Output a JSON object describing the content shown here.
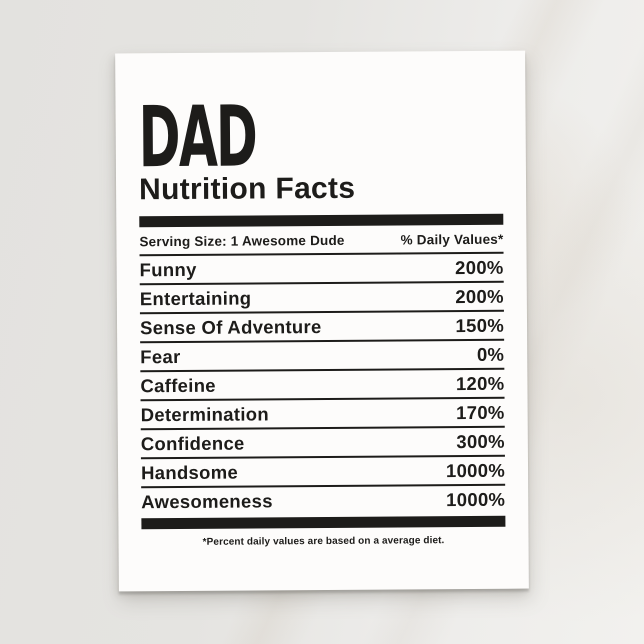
{
  "card": {
    "title": "DAD",
    "subtitle": "Nutrition Facts",
    "serving_label": "Serving Size: 1 Awesome Dude",
    "daily_values_label": "% Daily Values*",
    "rows": [
      {
        "label": "Funny",
        "value": "200%"
      },
      {
        "label": "Entertaining",
        "value": "200%"
      },
      {
        "label": "Sense Of Adventure",
        "value": "150%"
      },
      {
        "label": "Fear",
        "value": "0%"
      },
      {
        "label": "Caffeine",
        "value": "120%"
      },
      {
        "label": "Determination",
        "value": "170%"
      },
      {
        "label": "Confidence",
        "value": "300%"
      },
      {
        "label": "Handsome",
        "value": "1000%"
      },
      {
        "label": "Awesomeness",
        "value": "1000%"
      }
    ],
    "footnote": "*Percent daily values are based on a average diet.",
    "colors": {
      "ink": "#1d1c1a",
      "card": "#fdfcfb",
      "background": "#e5e4e1"
    }
  }
}
